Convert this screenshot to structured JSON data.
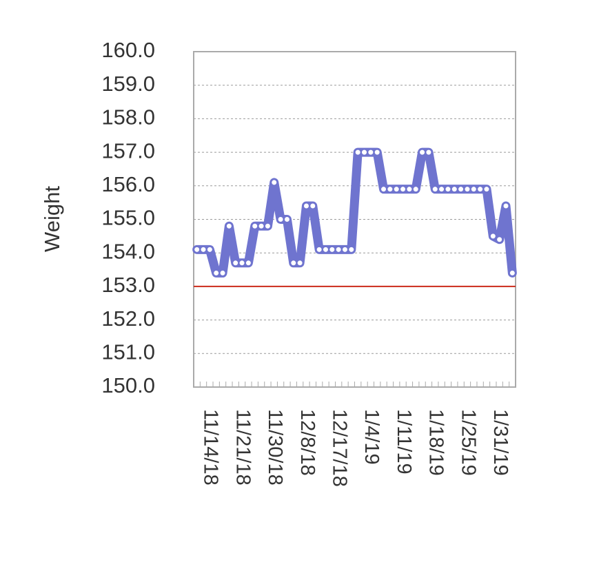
{
  "chart_data": {
    "type": "line",
    "y_label": "Weight",
    "categories": [
      null,
      null,
      "11/14/18",
      null,
      null,
      null,
      null,
      "11/21/18",
      null,
      null,
      null,
      null,
      "11/30/18",
      null,
      null,
      null,
      null,
      "12/8/18",
      null,
      null,
      null,
      null,
      "12/17/18",
      null,
      null,
      null,
      null,
      "1/4/19",
      null,
      null,
      null,
      null,
      "1/11/19",
      null,
      null,
      null,
      null,
      "1/18/19",
      null,
      null,
      null,
      null,
      "1/25/19",
      null,
      null,
      null,
      null,
      "1/31/19",
      null,
      null
    ],
    "series": [
      {
        "name": "Weight",
        "color": "#6f74cf",
        "values": [
          154.1,
          154.1,
          154.1,
          153.4,
          153.4,
          154.8,
          153.7,
          153.7,
          153.7,
          154.8,
          154.8,
          154.8,
          156.1,
          155.0,
          155.0,
          153.7,
          153.7,
          155.4,
          155.4,
          154.1,
          154.1,
          154.1,
          154.1,
          154.1,
          154.1,
          157.0,
          157.0,
          157.0,
          157.0,
          155.9,
          155.9,
          155.9,
          155.9,
          155.9,
          155.9,
          157.0,
          157.0,
          155.9,
          155.9,
          155.9,
          155.9,
          155.9,
          155.9,
          155.9,
          155.9,
          155.9,
          154.5,
          154.4,
          155.4,
          153.4
        ]
      }
    ],
    "target": {
      "value": 153,
      "color": "#cc2a1a"
    },
    "ylim": [
      150,
      160
    ],
    "yticks": [
      {
        "value": 150,
        "label": "150.0"
      },
      {
        "value": 151,
        "label": "151.0"
      },
      {
        "value": 152,
        "label": "152.0"
      },
      {
        "value": 153,
        "label": "153.0"
      },
      {
        "value": 154,
        "label": "154.0"
      },
      {
        "value": 155,
        "label": "155.0"
      },
      {
        "value": 156,
        "label": "156.0"
      },
      {
        "value": 157,
        "label": "157.0"
      },
      {
        "value": 158,
        "label": "158.0"
      },
      {
        "value": 159,
        "label": "159.0"
      },
      {
        "value": 160,
        "label": "160.0"
      }
    ],
    "grid": true
  }
}
